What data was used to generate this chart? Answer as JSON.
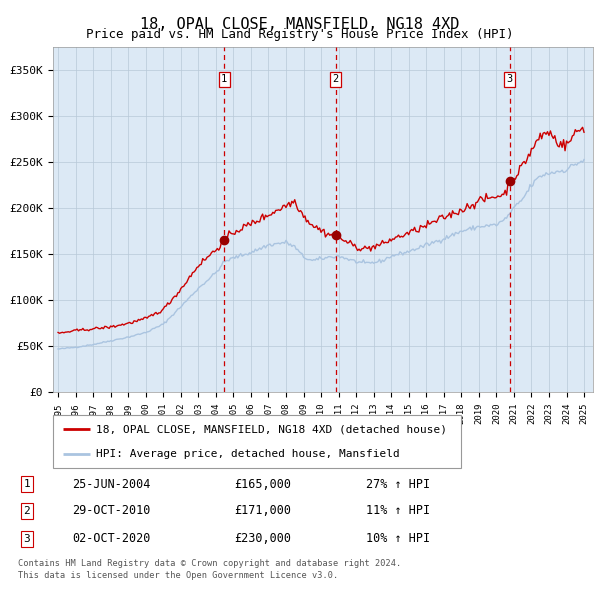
{
  "title": "18, OPAL CLOSE, MANSFIELD, NG18 4XD",
  "subtitle": "Price paid vs. HM Land Registry's House Price Index (HPI)",
  "legend_line1": "18, OPAL CLOSE, MANSFIELD, NG18 4XD (detached house)",
  "legend_line2": "HPI: Average price, detached house, Mansfield",
  "footer1": "Contains HM Land Registry data © Crown copyright and database right 2024.",
  "footer2": "This data is licensed under the Open Government Licence v3.0.",
  "transactions": [
    {
      "num": 1,
      "date": "25-JUN-2004",
      "price": 165000,
      "pct": "27%",
      "dir": "↑"
    },
    {
      "num": 2,
      "date": "29-OCT-2010",
      "price": 171000,
      "pct": "11%",
      "dir": "↑"
    },
    {
      "num": 3,
      "date": "02-OCT-2020",
      "price": 230000,
      "pct": "10%",
      "dir": "↑"
    }
  ],
  "transaction_dates_decimal": [
    2004.48,
    2010.83,
    2020.75
  ],
  "transaction_prices": [
    165000,
    171000,
    230000
  ],
  "ylabel_ticks": [
    "£0",
    "£50K",
    "£100K",
    "£150K",
    "£200K",
    "£250K",
    "£300K",
    "£350K"
  ],
  "ytick_vals": [
    0,
    50000,
    100000,
    150000,
    200000,
    250000,
    300000,
    350000
  ],
  "ylim": [
    0,
    375000
  ],
  "xlim_start": 1994.7,
  "xlim_end": 2025.5,
  "background_color": "#ffffff",
  "plot_bg_color": "#dce9f5",
  "grid_color": "#b8c8d8",
  "hpi_color": "#aac4e0",
  "price_color": "#cc0000",
  "marker_color": "#990000",
  "dashed_line_color": "#cc0000",
  "title_fontsize": 11,
  "subtitle_fontsize": 9,
  "axis_fontsize": 8
}
